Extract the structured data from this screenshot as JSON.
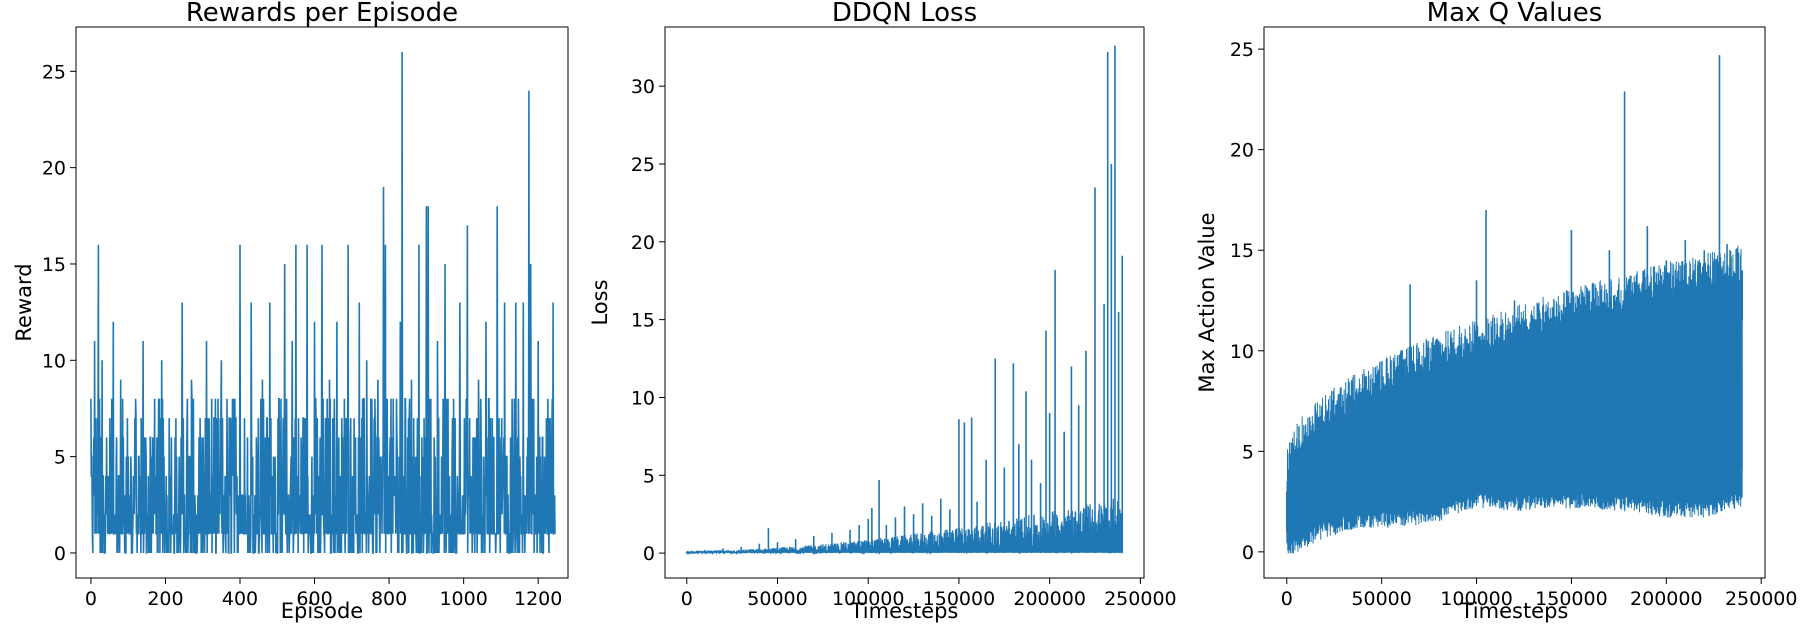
{
  "chart_data": [
    {
      "type": "line",
      "title": "Rewards per Episode",
      "xlabel": "Episode",
      "ylabel": "Reward",
      "xlim": [
        -40,
        1280
      ],
      "ylim": [
        -1.3,
        27.3
      ],
      "xticks": [
        0,
        200,
        400,
        600,
        800,
        1000,
        1200
      ],
      "yticks": [
        0,
        5,
        10,
        15,
        20,
        25
      ],
      "x_tick_labels": [
        "0",
        "200",
        "400",
        "600",
        "800",
        "1000",
        "1200"
      ],
      "y_tick_labels": [
        "0",
        "5",
        "10",
        "15",
        "20",
        "25"
      ],
      "color": "#1f77b4",
      "grid": false,
      "series": [
        {
          "x": [
            0,
            5,
            10,
            15,
            20,
            25,
            30,
            40,
            50,
            60,
            70,
            80,
            90,
            100,
            110,
            120,
            130,
            140,
            150,
            160,
            170,
            180,
            190,
            200,
            210,
            220,
            230,
            240,
            245,
            250,
            260,
            270,
            280,
            290,
            300,
            310,
            320,
            330,
            340,
            350,
            360,
            370,
            380,
            390,
            400,
            410,
            420,
            430,
            440,
            450,
            460,
            470,
            480,
            490,
            500,
            510,
            520,
            530,
            540,
            550,
            560,
            570,
            580,
            590,
            600,
            610,
            620,
            630,
            640,
            650,
            660,
            670,
            680,
            690,
            700,
            710,
            720,
            730,
            740,
            750,
            760,
            770,
            780,
            785,
            790,
            800,
            810,
            820,
            830,
            835,
            840,
            850,
            860,
            870,
            880,
            890,
            900,
            905,
            910,
            920,
            930,
            940,
            950,
            960,
            970,
            980,
            990,
            1000,
            1010,
            1020,
            1030,
            1040,
            1050,
            1060,
            1070,
            1080,
            1090,
            1100,
            1110,
            1120,
            1130,
            1140,
            1150,
            1160,
            1170,
            1175,
            1180,
            1190,
            1200,
            1210,
            1220,
            1230,
            1240,
            1245
          ],
          "y": [
            8,
            0,
            11,
            2,
            16,
            0,
            10,
            4,
            1,
            12,
            0,
            9,
            1,
            5,
            0,
            8,
            2,
            11,
            0,
            6,
            3,
            0,
            10,
            2,
            7,
            1,
            5,
            0,
            13,
            3,
            0,
            9,
            2,
            6,
            0,
            11,
            3,
            7,
            1,
            10,
            4,
            0,
            8,
            2,
            16,
            1,
            6,
            13,
            3,
            0,
            9,
            2,
            13,
            5,
            0,
            8,
            15,
            3,
            11,
            16,
            2,
            7,
            16,
            0,
            12,
            4,
            16,
            1,
            9,
            3,
            12,
            0,
            8,
            16,
            2,
            6,
            13,
            4,
            10,
            1,
            7,
            9,
            3,
            19,
            16,
            4,
            1,
            8,
            12,
            26,
            2,
            6,
            9,
            3,
            16,
            1,
            18,
            18,
            5,
            0,
            11,
            2,
            15,
            3,
            7,
            0,
            13,
            1,
            17,
            4,
            0,
            9,
            2,
            12,
            0,
            6,
            18,
            3,
            13,
            1,
            8,
            13,
            0,
            13,
            5,
            24,
            15,
            2,
            11,
            0,
            4,
            7,
            13,
            1
          ]
        }
      ]
    },
    {
      "type": "line",
      "title": "DDQN Loss",
      "xlabel": "Timesteps",
      "ylabel": "Loss",
      "xlim": [
        -12000,
        252000
      ],
      "ylim": [
        -1.6,
        33.8
      ],
      "xticks": [
        0,
        50000,
        100000,
        150000,
        200000,
        250000
      ],
      "yticks": [
        0,
        5,
        10,
        15,
        20,
        25,
        30
      ],
      "x_tick_labels": [
        "0",
        "50000",
        "100000",
        "150000",
        "200000",
        "250000"
      ],
      "y_tick_labels": [
        "0",
        "5",
        "10",
        "15",
        "20",
        "25",
        "30"
      ],
      "color": "#1f77b4",
      "grid": false,
      "series": [
        {
          "x": [
            0,
            10000,
            20000,
            30000,
            40000,
            45000,
            50000,
            60000,
            70000,
            80000,
            90000,
            95000,
            100000,
            102000,
            106000,
            110000,
            115000,
            120000,
            125000,
            130000,
            135000,
            140000,
            145000,
            150000,
            153000,
            157000,
            160000,
            165000,
            170000,
            175000,
            180000,
            183000,
            187000,
            190000,
            195000,
            198000,
            200000,
            203000,
            208000,
            212000,
            216000,
            220000,
            225000,
            230000,
            232000,
            234000,
            236000,
            238000,
            240000
          ],
          "y": [
            0.1,
            0.2,
            0.3,
            0.4,
            0.6,
            1.6,
            0.7,
            0.9,
            1.1,
            1.3,
            1.5,
            1.8,
            2.2,
            2.9,
            4.7,
            1.8,
            2.3,
            3.0,
            2.5,
            3.2,
            2.4,
            3.5,
            2.8,
            8.6,
            8.4,
            8.7,
            3.3,
            6.0,
            12.5,
            5.5,
            12.2,
            7.0,
            10.4,
            6.0,
            4.5,
            14.3,
            9.0,
            18.2,
            7.8,
            12.0,
            9.5,
            13.0,
            23.5,
            16.0,
            32.2,
            25.0,
            32.6,
            15.5,
            19.1
          ]
        }
      ]
    },
    {
      "type": "line",
      "title": "Max Q Values",
      "xlabel": "Timesteps",
      "ylabel": "Max Action Value",
      "xlim": [
        -12000,
        252000
      ],
      "ylim": [
        -1.3,
        26.1
      ],
      "xticks": [
        0,
        50000,
        100000,
        150000,
        200000,
        250000
      ],
      "yticks": [
        0,
        5,
        10,
        15,
        20,
        25
      ],
      "x_tick_labels": [
        "0",
        "50000",
        "100000",
        "150000",
        "200000",
        "250000"
      ],
      "y_tick_labels": [
        "0",
        "5",
        "10",
        "15",
        "20",
        "25"
      ],
      "color": "#1f77b4",
      "grid": false,
      "series": [
        {
          "x": [
            0,
            20000,
            40000,
            65000,
            80000,
            100000,
            105000,
            120000,
            150000,
            170000,
            178000,
            190000,
            200000,
            210000,
            220000,
            228000,
            232000,
            240000
          ],
          "y": [
            3,
            5,
            7.5,
            13.3,
            10.5,
            13.5,
            17.0,
            12.5,
            16.0,
            15.0,
            22.9,
            16.2,
            14.5,
            15.5,
            15.0,
            24.7,
            15.3,
            14.0
          ]
        },
        {
          "x": [
            0,
            20000,
            40000,
            60000,
            80000,
            100000,
            120000,
            140000,
            160000,
            180000,
            200000,
            220000,
            240000
          ],
          "y": [
            0.5,
            1.5,
            2.0,
            2.0,
            2.3,
            3.0,
            2.8,
            3.0,
            2.9,
            2.8,
            2.5,
            2.5,
            3.0
          ]
        }
      ]
    }
  ]
}
